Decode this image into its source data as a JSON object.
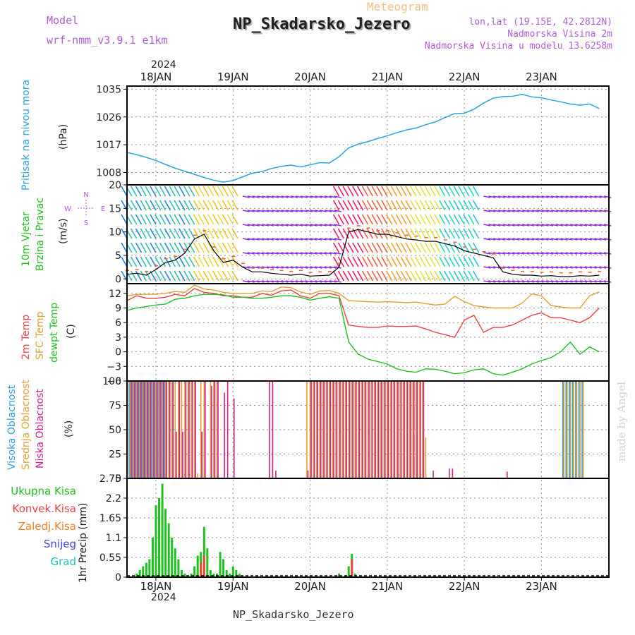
{
  "header": {
    "model_label": "Model",
    "model_value": "wrf-nmm_v3.9.1 e1km",
    "meteogram_label": "Meteogram",
    "station_title": "NP_Skadarsko_Jezero",
    "lonlat": "lon,lat (19.15E, 42.2812N)",
    "elevation": "Nadmorska Visina 2m",
    "model_elevation": "Nadmorska Visina u modelu 13.6258m"
  },
  "footer": {
    "station": "NP_Skadarsko_Jezero",
    "watermark": "made by Angel"
  },
  "time_axis": {
    "year": "2024",
    "ticks": [
      "18JAN",
      "19JAN",
      "20JAN",
      "21JAN",
      "22JAN",
      "23JAN"
    ]
  },
  "colors": {
    "pressure": "#29a3e0",
    "temp_2m": "#f04040",
    "temp_sfc": "#e0a030",
    "dewpoint": "#20c020",
    "cloud_high": "#30a0e0",
    "cloud_mid": "#e0a030",
    "cloud_low": "#d02090",
    "rain_total": "#20c020",
    "rain_convective": "#f04040",
    "rain_frozen": "#f08020",
    "snow": "#4040e0",
    "hail": "#20c0c0",
    "text_purple": "#b05cd6"
  },
  "panels": {
    "pressure": {
      "labels": [
        "Pritisak na nivou mora",
        "(hPa)"
      ],
      "yticks": [
        "1008",
        "1017",
        "1026",
        "1035"
      ]
    },
    "wind": {
      "labels": [
        "10m Vjetar",
        "Brzina i Pravac",
        "(m/s)"
      ],
      "yticks": [
        "0",
        "5",
        "10",
        "15",
        "20"
      ],
      "compass": {
        "n": "N",
        "s": "S",
        "e": "E",
        "w": "W"
      }
    },
    "temperature": {
      "labels": [
        "2m Temp",
        "SFC Temp",
        "dewpt Temp",
        "(C)"
      ],
      "yticks": [
        "−6",
        "−3",
        "0",
        "3",
        "6",
        "9",
        "12"
      ]
    },
    "clouds": {
      "labels": [
        "Visoka Oblacnost",
        "Srednja Oblacnost",
        "Niska Oblacnost",
        "(%)"
      ],
      "yticks": [
        "0",
        "25",
        "50",
        "75",
        "100"
      ]
    },
    "precip": {
      "legend": [
        "Ukupna Kisa",
        "Konvek.Kisa",
        "Zaledj.Kisa",
        "Snijeg",
        "Grad"
      ],
      "unit_label": "1hr Precip (mm)",
      "yticks": [
        "0",
        "0.55",
        "1.1",
        "1.65",
        "2.2",
        "2.75"
      ]
    }
  },
  "chart_data": [
    {
      "type": "line",
      "title": "Pritisak na nivou mora",
      "ylabel": "(hPa)",
      "ylim": [
        1004,
        1036
      ],
      "x": [
        0,
        3,
        6,
        9,
        12,
        15,
        18,
        21,
        24,
        27,
        30,
        33,
        36,
        39,
        42,
        45,
        48,
        51,
        54,
        57,
        60,
        63,
        66,
        69,
        72,
        75,
        78,
        81,
        84,
        87,
        90,
        93,
        96,
        99,
        102,
        105,
        108,
        111,
        114,
        117,
        120,
        123,
        126,
        129,
        132,
        135,
        138,
        141,
        144,
        147
      ],
      "series": [
        {
          "values": [
            1014.5,
            1013.8,
            1012.9,
            1011.9,
            1010.6,
            1009.4,
            1008.4,
            1007.4,
            1006.4,
            1005.5,
            1004.9,
            1005.4,
            1006.6,
            1007.8,
            1008.3,
            1009.3,
            1010.0,
            1010.4,
            1009.8,
            1010.5,
            1011.2,
            1011.1,
            1013.1,
            1016.0,
            1017.2,
            1018.0,
            1019.0,
            1019.9,
            1020.9,
            1021.8,
            1022.4,
            1023.5,
            1024.4,
            1025.8,
            1027.1,
            1027.2,
            1028.5,
            1030.5,
            1032.1,
            1032.6,
            1032.7,
            1033.3,
            1032.5,
            1032.2,
            1031.5,
            1030.9,
            1030.2,
            1029.8,
            1030.2,
            1028.7
          ]
        }
      ]
    },
    {
      "type": "line",
      "title": "10m Vjetar Brzina i Pravac",
      "ylabel": "(m/s)",
      "ylim": [
        -1,
        20
      ],
      "x": [
        0,
        3,
        6,
        9,
        12,
        15,
        18,
        21,
        24,
        27,
        30,
        33,
        36,
        39,
        42,
        45,
        48,
        51,
        54,
        57,
        60,
        63,
        66,
        69,
        72,
        75,
        78,
        81,
        84,
        87,
        90,
        93,
        96,
        99,
        102,
        105,
        108,
        111,
        114,
        117,
        120,
        123,
        126,
        129,
        132,
        135,
        138,
        141,
        144,
        147
      ],
      "series": [
        {
          "values": [
            1.0,
            1.2,
            0.8,
            2.0,
            3.5,
            4.0,
            5.5,
            8.5,
            9.5,
            6.0,
            3.5,
            4.0,
            2.5,
            1.5,
            1.5,
            1.2,
            1.0,
            0.8,
            1.0,
            0.6,
            0.7,
            0.8,
            2.5,
            10.0,
            10.5,
            10.0,
            9.5,
            9.5,
            9.0,
            8.5,
            8.3,
            8.0,
            8.0,
            7.5,
            7.0,
            6.0,
            5.5,
            5.0,
            4.5,
            1.5,
            1.0,
            0.8,
            0.8,
            0.6,
            0.7,
            0.5,
            0.5,
            0.7,
            0.6,
            0.8
          ]
        }
      ]
    },
    {
      "type": "line",
      "title": "2m Temp / SFC Temp / dewpt Temp",
      "ylabel": "(C)",
      "ylim": [
        -6,
        14
      ],
      "x": [
        0,
        3,
        6,
        9,
        12,
        15,
        18,
        21,
        24,
        27,
        30,
        33,
        36,
        39,
        42,
        45,
        48,
        51,
        54,
        57,
        60,
        63,
        66,
        69,
        72,
        75,
        78,
        81,
        84,
        87,
        90,
        93,
        96,
        99,
        102,
        105,
        108,
        111,
        114,
        117,
        120,
        123,
        126,
        129,
        132,
        135,
        138,
        141,
        144,
        147
      ],
      "series": [
        {
          "name": "2m Temp",
          "values": [
            10.5,
            11.5,
            11.0,
            11.0,
            11.2,
            11.8,
            11.5,
            13.0,
            12.2,
            12.0,
            11.5,
            11.5,
            11.2,
            11.2,
            12.0,
            11.6,
            12.5,
            12.7,
            11.5,
            11.0,
            12.0,
            12.0,
            11.5,
            5.5,
            5.2,
            5.0,
            5.0,
            5.3,
            5.2,
            5.2,
            5.3,
            4.7,
            4.0,
            3.5,
            3.0,
            6.5,
            7.5,
            4.0,
            5.0,
            5.0,
            5.5,
            6.5,
            7.5,
            8.0,
            7.0,
            7.0,
            6.5,
            6.0,
            7.0,
            9.0
          ]
        },
        {
          "name": "SFC Temp",
          "values": [
            11.5,
            11.8,
            11.8,
            11.8,
            12.0,
            12.4,
            12.2,
            13.7,
            12.9,
            12.7,
            12.2,
            12.0,
            12.0,
            12.0,
            12.5,
            12.4,
            13.3,
            13.2,
            12.3,
            11.8,
            12.5,
            12.6,
            12.0,
            10.5,
            10.4,
            10.3,
            10.2,
            10.3,
            10.2,
            10.1,
            10.2,
            9.9,
            9.6,
            9.8,
            11.4,
            10.3,
            9.5,
            9.2,
            9.0,
            9.0,
            9.0,
            10.0,
            11.9,
            11.5,
            9.5,
            9.2,
            9.0,
            9.0,
            11.5,
            12.3
          ]
        },
        {
          "name": "dewpt Temp",
          "values": [
            8.5,
            9.0,
            9.3,
            9.6,
            9.8,
            10.8,
            11.0,
            11.5,
            11.8,
            11.8,
            11.7,
            11.2,
            11.2,
            11.0,
            11.0,
            11.2,
            11.5,
            11.5,
            11.2,
            10.6,
            11.0,
            11.3,
            11.0,
            2.0,
            -0.5,
            -1.5,
            -2.0,
            -2.5,
            -3.5,
            -4.0,
            -4.2,
            -3.5,
            -3.6,
            -4.0,
            -4.5,
            -4.3,
            -3.7,
            -3.5,
            -4.5,
            -4.8,
            -4.2,
            -3.5,
            -2.5,
            -1.8,
            -1.2,
            0.0,
            2.0,
            -0.5,
            1.0,
            0.0
          ]
        }
      ]
    },
    {
      "type": "bar",
      "title": "Visoka / Srednja / Niska Oblacnost",
      "ylabel": "(%)",
      "ylim": [
        0,
        100
      ],
      "x": [
        1,
        2,
        3,
        4,
        5,
        6,
        7,
        8,
        9,
        10,
        11,
        12,
        13,
        14,
        15,
        16,
        17,
        18,
        19,
        20,
        21,
        22,
        23,
        24,
        26,
        27,
        28,
        30,
        31,
        33,
        44,
        45,
        46,
        56,
        57,
        58,
        59,
        60,
        61,
        62,
        63,
        64,
        65,
        66,
        67,
        68,
        69,
        70,
        71,
        72,
        73,
        74,
        75,
        76,
        77,
        78,
        79,
        80,
        81,
        82,
        83,
        84,
        85,
        86,
        87,
        88,
        89,
        90,
        91,
        92,
        93,
        95,
        100,
        101,
        118,
        136,
        137,
        138,
        139,
        140,
        141,
        142
      ],
      "series": [
        {
          "name": "Visoka Oblacnost",
          "values": [
            100,
            100,
            100,
            100,
            100,
            100,
            100,
            100,
            100,
            100,
            100,
            100,
            0,
            0,
            0,
            0,
            0,
            0,
            0,
            0,
            0,
            0,
            0,
            0,
            0,
            0,
            0,
            0,
            0,
            0,
            0,
            0,
            0,
            0,
            0,
            0,
            0,
            0,
            0,
            0,
            0,
            0,
            0,
            0,
            0,
            0,
            0,
            0,
            0,
            0,
            0,
            0,
            0,
            0,
            0,
            0,
            0,
            0,
            0,
            0,
            0,
            0,
            0,
            0,
            0,
            0,
            0,
            0,
            0,
            0,
            0,
            0,
            0,
            0,
            0,
            100,
            100,
            100,
            100,
            100,
            100,
            100
          ]
        },
        {
          "name": "Srednja Oblacnost",
          "values": [
            100,
            100,
            100,
            100,
            100,
            100,
            100,
            100,
            100,
            100,
            100,
            100,
            100,
            100,
            100,
            100,
            100,
            100,
            100,
            100,
            100,
            5,
            100,
            100,
            100,
            100,
            100,
            0,
            0,
            0,
            0,
            0,
            0,
            100,
            100,
            100,
            100,
            100,
            100,
            100,
            100,
            100,
            100,
            100,
            100,
            100,
            100,
            100,
            100,
            100,
            100,
            100,
            100,
            100,
            100,
            100,
            100,
            100,
            100,
            100,
            100,
            100,
            100,
            100,
            100,
            100,
            100,
            100,
            100,
            100,
            42,
            0,
            0,
            0,
            0,
            100,
            100,
            100,
            100,
            100,
            100,
            100
          ]
        },
        {
          "name": "Niska Oblacnost",
          "values": [
            100,
            100,
            100,
            100,
            100,
            100,
            100,
            100,
            100,
            100,
            100,
            100,
            100,
            100,
            48,
            100,
            48,
            100,
            100,
            100,
            100,
            0,
            48,
            100,
            95,
            100,
            100,
            88,
            100,
            82,
            100,
            100,
            8,
            8,
            100,
            100,
            100,
            100,
            100,
            100,
            100,
            100,
            100,
            100,
            100,
            100,
            100,
            100,
            100,
            100,
            100,
            100,
            100,
            100,
            100,
            100,
            100,
            100,
            100,
            100,
            100,
            100,
            100,
            100,
            100,
            100,
            100,
            100,
            100,
            100,
            0,
            8,
            10,
            10,
            7,
            0,
            0,
            0,
            0,
            0,
            0,
            0
          ]
        }
      ]
    },
    {
      "type": "bar",
      "title": "1hr Precip",
      "ylabel": "1hr Precip (mm)",
      "ylim": [
        0,
        2.75
      ],
      "x": [
        3,
        4,
        5,
        6,
        7,
        8,
        9,
        10,
        11,
        12,
        13,
        14,
        15,
        16,
        17,
        18,
        20,
        21,
        22,
        23,
        24,
        25,
        26,
        27,
        28,
        29,
        30,
        31,
        32,
        33,
        34,
        35,
        66,
        68,
        69,
        70,
        71
      ],
      "series": [
        {
          "name": "Ukupna Kisa",
          "values": [
            0.1,
            0.2,
            0.3,
            0.4,
            0.5,
            1.1,
            2.0,
            2.2,
            2.6,
            1.9,
            1.5,
            1.1,
            0.8,
            0.5,
            0.2,
            0.1,
            0.1,
            0.3,
            0.6,
            0.7,
            1.4,
            0.8,
            0.2,
            0.1,
            0.1,
            0.7,
            0.5,
            0.2,
            0.1,
            0.3,
            0.2,
            0.1,
            0.1,
            0.05,
            0.3,
            0.65,
            0.1
          ]
        },
        {
          "name": "Konvek.Kisa",
          "values": [
            0,
            0,
            0,
            0,
            0,
            0,
            0,
            0,
            0,
            0,
            0,
            0,
            0,
            0,
            0,
            0,
            0,
            0,
            0,
            0.4,
            0.6,
            0,
            0,
            0,
            0,
            0,
            0,
            0,
            0,
            0,
            0,
            0,
            0,
            0,
            0,
            0.5,
            0
          ]
        },
        {
          "name": "Zaledj.Kisa",
          "values": [
            0,
            0,
            0,
            0,
            0,
            0,
            0,
            0,
            0,
            0,
            0,
            0,
            0,
            0,
            0,
            0,
            0,
            0,
            0,
            0,
            0,
            0,
            0,
            0,
            0,
            0,
            0,
            0,
            0,
            0,
            0,
            0,
            0,
            0,
            0,
            0,
            0
          ]
        },
        {
          "name": "Snijeg",
          "values": [
            0,
            0,
            0,
            0,
            0,
            0,
            0,
            0,
            0,
            0,
            0,
            0,
            0,
            0,
            0,
            0,
            0,
            0,
            0,
            0,
            0,
            0,
            0,
            0,
            0,
            0,
            0,
            0,
            0,
            0,
            0,
            0,
            0,
            0,
            0,
            0,
            0
          ]
        },
        {
          "name": "Grad",
          "values": [
            0,
            0,
            0,
            0,
            0,
            0,
            0,
            0,
            0,
            0,
            0,
            0,
            0,
            0,
            0,
            0,
            0,
            0,
            0,
            0,
            0,
            0,
            0,
            0,
            0,
            0,
            0,
            0,
            0,
            0,
            0,
            0,
            0,
            0,
            0,
            0,
            0
          ]
        }
      ]
    }
  ]
}
